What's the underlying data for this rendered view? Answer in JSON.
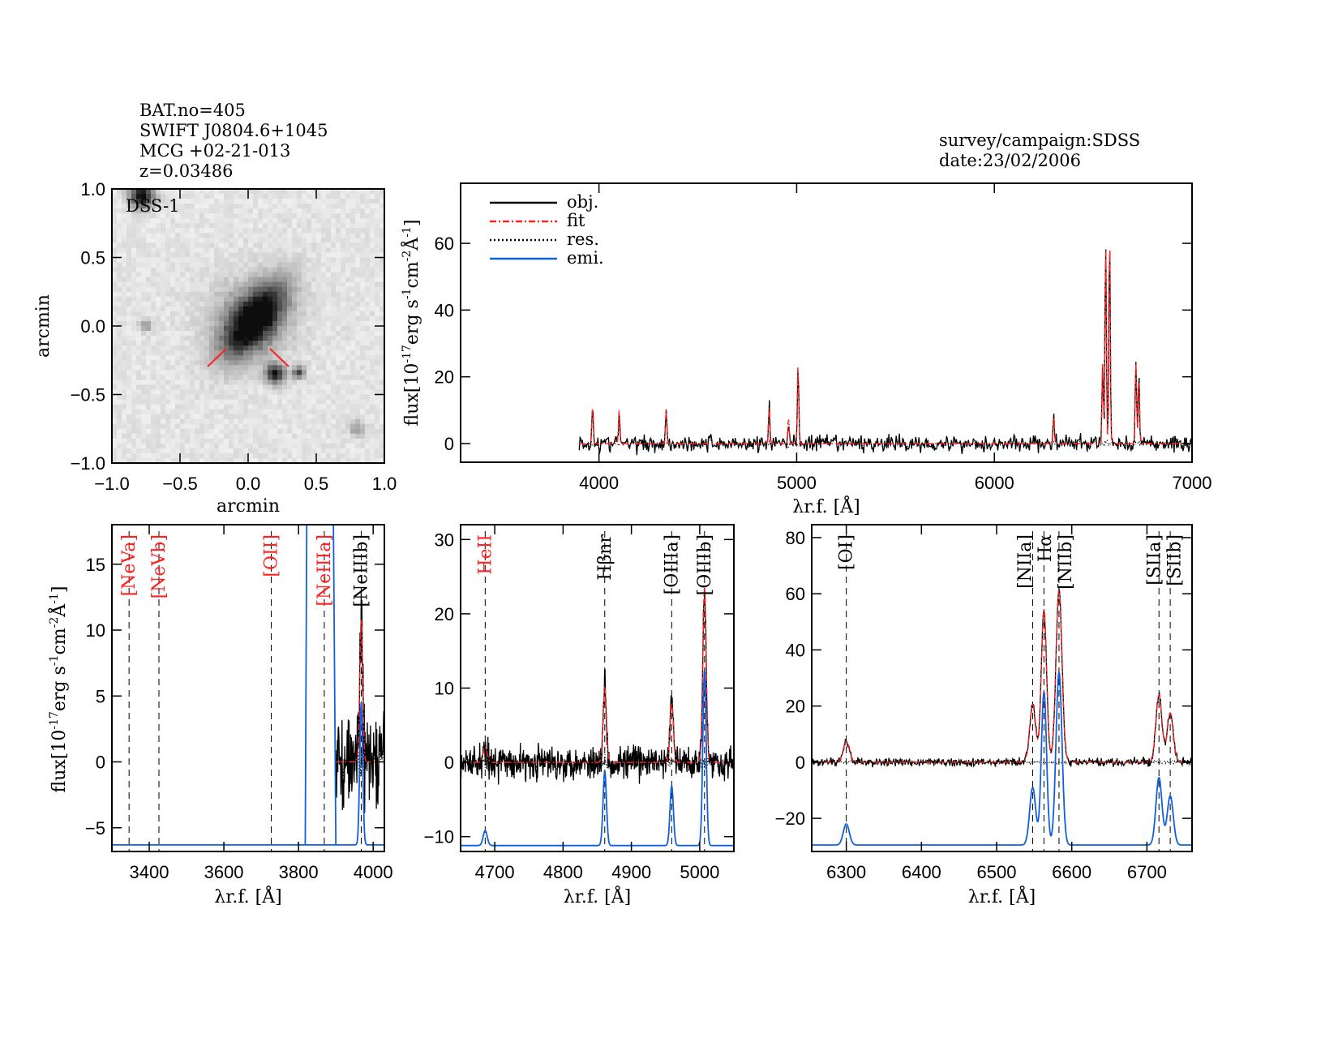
{
  "header": {
    "left_lines": [
      "BAT.no=405",
      "SWIFT J0804.6+1045",
      "MCG +02-21-013",
      "z=0.03486"
    ],
    "right_lines": [
      "survey/campaign:SDSS",
      "date:23/02/2006"
    ]
  },
  "colors": {
    "obj": "#000000",
    "fit": "#ff2020",
    "res": "#000000",
    "emi": "#1060e0",
    "label_red": "#ff2020"
  },
  "chart_data": [
    {
      "type": "heatmap",
      "inset_label": "DSS-1",
      "xlabel": "arcmin",
      "ylabel": "arcmin",
      "xlim": [
        -1.0,
        1.0
      ],
      "ylim": [
        -1.0,
        1.0
      ],
      "xticks": [
        "-1.0",
        "-0.5",
        "0.0",
        "0.5",
        "1.0"
      ],
      "yticks": [
        "-1.0",
        "-0.5",
        "0.0",
        "0.5",
        "1.0"
      ],
      "colormap": "inverted grayscale"
    },
    {
      "type": "line",
      "xlabel": "λr.f. [Å]",
      "ylabel": "flux[10^-17 erg s^-1 cm^-2 Å^-1]",
      "xlim": [
        3300,
        7000
      ],
      "ylim": [
        -5.6,
        78
      ],
      "xticks": [
        4000,
        5000,
        6000,
        7000
      ],
      "yticks": [
        0,
        20,
        40,
        60
      ],
      "legend": {
        "placement": "top-left",
        "entries": [
          "obj.",
          "fit",
          "res.",
          "emi."
        ]
      },
      "spectrum_start": 3900,
      "lines": [
        {
          "wave": 3968,
          "peak": 12
        },
        {
          "wave": 4102,
          "peak": 10
        },
        {
          "wave": 4340,
          "peak": 10
        },
        {
          "wave": 4861,
          "peak": 11
        },
        {
          "wave": 4959,
          "peak": 8
        },
        {
          "wave": 5007,
          "peak": 24
        },
        {
          "wave": 6300,
          "peak": 8
        },
        {
          "wave": 6548,
          "peak": 24
        },
        {
          "wave": 6563,
          "peak": 60
        },
        {
          "wave": 6583,
          "peak": 64
        },
        {
          "wave": 6716,
          "peak": 24
        },
        {
          "wave": 6731,
          "peak": 20
        }
      ]
    },
    {
      "type": "line",
      "xlabel": "λr.f. [Å]",
      "ylabel": "flux[10^-17 erg s^-1 cm^-2 Å^-1]",
      "xlim": [
        3300,
        4030
      ],
      "ylim": [
        -6.8,
        18
      ],
      "xticks": [
        3400,
        3600,
        3800,
        4000
      ],
      "yticks": [
        -5,
        0,
        5,
        10,
        15
      ],
      "emi_baseline": -6.3,
      "marked_lines": [
        {
          "label": "[NeVa]",
          "wave": 3346,
          "color": "red"
        },
        {
          "label": "[NeVb]",
          "wave": 3426,
          "color": "red"
        },
        {
          "label": "[OII]",
          "wave": 3727,
          "color": "red"
        },
        {
          "label": "[NeIIIa]",
          "wave": 3869,
          "color": "red"
        },
        {
          "label": "[NeIIIb]",
          "wave": 3968,
          "color": "black"
        }
      ],
      "emission": [
        {
          "wave": 3968,
          "amp": 10.8,
          "sigma": 4
        }
      ]
    },
    {
      "type": "line",
      "xlabel": "λr.f. [Å]",
      "xlim": [
        4650,
        5050
      ],
      "ylim": [
        -12,
        32
      ],
      "xticks": [
        4700,
        4800,
        4900,
        5000
      ],
      "yticks": [
        -10,
        0,
        10,
        20,
        30
      ],
      "emi_baseline": -11.2,
      "marked_lines": [
        {
          "label": "HeII",
          "wave": 4686,
          "color": "red"
        },
        {
          "label": "Hβnr",
          "wave": 4861,
          "color": "black"
        },
        {
          "label": "[OIIIa]",
          "wave": 4959,
          "color": "black"
        },
        {
          "label": "[OIIIb]",
          "wave": 5007,
          "color": "black"
        }
      ],
      "emission": [
        {
          "wave": 4686,
          "amp": 2,
          "sigma": 3
        },
        {
          "wave": 4861,
          "amp": 10,
          "sigma": 2.5
        },
        {
          "wave": 4959,
          "amp": 8,
          "sigma": 2.5
        },
        {
          "wave": 5007,
          "amp": 23.5,
          "sigma": 2.5
        }
      ]
    },
    {
      "type": "line",
      "xlabel": "λr.f. [Å]",
      "xlim": [
        6254,
        6760
      ],
      "ylim": [
        -31.8,
        84.6
      ],
      "xticks": [
        6300,
        6400,
        6500,
        6600,
        6700
      ],
      "yticks": [
        -20,
        0,
        20,
        40,
        60,
        80
      ],
      "emi_baseline": -29.5,
      "marked_lines": [
        {
          "label": "[OI]",
          "wave": 6300,
          "color": "black"
        },
        {
          "label": "[NIIa]",
          "wave": 6548,
          "color": "black"
        },
        {
          "label": "Hα",
          "wave": 6563,
          "color": "black"
        },
        {
          "label": "[NIIb]",
          "wave": 6583,
          "color": "black"
        },
        {
          "label": "[SIIa]",
          "wave": 6716,
          "color": "black"
        },
        {
          "label": "[SIIb]",
          "wave": 6731,
          "color": "black"
        }
      ],
      "emission": [
        {
          "wave": 6300,
          "amp": 7.5,
          "sigma": 4
        },
        {
          "wave": 6548,
          "amp": 20.5,
          "sigma": 4
        },
        {
          "wave": 6563,
          "amp": 54.5,
          "sigma": 3.5
        },
        {
          "wave": 6583,
          "amp": 61.5,
          "sigma": 4
        },
        {
          "wave": 6716,
          "amp": 24,
          "sigma": 4
        },
        {
          "wave": 6731,
          "amp": 17.5,
          "sigma": 4
        }
      ]
    }
  ]
}
